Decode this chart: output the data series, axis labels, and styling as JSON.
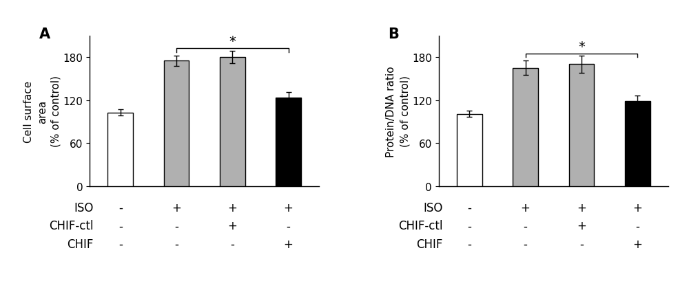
{
  "panel_A": {
    "title": "A",
    "ylabel": "Cell surface\narea\n(% of control)",
    "bars": [
      103,
      175,
      180,
      124
    ],
    "errors": [
      4,
      7,
      9,
      7
    ],
    "colors": [
      "white",
      "#b0b0b0",
      "#b0b0b0",
      "black"
    ],
    "edgecolors": [
      "black",
      "black",
      "black",
      "black"
    ],
    "ylim": [
      0,
      210
    ],
    "yticks": [
      0,
      60,
      120,
      180
    ],
    "iso_labels": [
      "-",
      "+",
      "+",
      "+"
    ],
    "chifctl_labels": [
      "-",
      "-",
      "+",
      "-"
    ],
    "chif_labels": [
      "-",
      "-",
      "-",
      "+"
    ],
    "sig_bar": [
      1,
      3
    ],
    "sig_text": "*"
  },
  "panel_B": {
    "title": "B",
    "ylabel": "Protein/DNA ratio\n(% of control)",
    "bars": [
      101,
      165,
      170,
      119
    ],
    "errors": [
      4,
      10,
      12,
      7
    ],
    "colors": [
      "white",
      "#b0b0b0",
      "#b0b0b0",
      "black"
    ],
    "edgecolors": [
      "black",
      "black",
      "black",
      "black"
    ],
    "ylim": [
      0,
      210
    ],
    "yticks": [
      0,
      60,
      120,
      180
    ],
    "iso_labels": [
      "-",
      "+",
      "+",
      "+"
    ],
    "chifctl_labels": [
      "-",
      "-",
      "+",
      "-"
    ],
    "chif_labels": [
      "-",
      "-",
      "-",
      "+"
    ],
    "sig_bar": [
      1,
      3
    ],
    "sig_text": "*"
  },
  "background_color": "#ffffff",
  "bar_width": 0.45,
  "label_rows": [
    "ISO",
    "CHIF-ctl",
    "CHIF"
  ],
  "fontsize_labels": 12,
  "fontsize_title": 15,
  "fontsize_axis": 11,
  "fontsize_tick": 11,
  "fontsize_sign": 14
}
